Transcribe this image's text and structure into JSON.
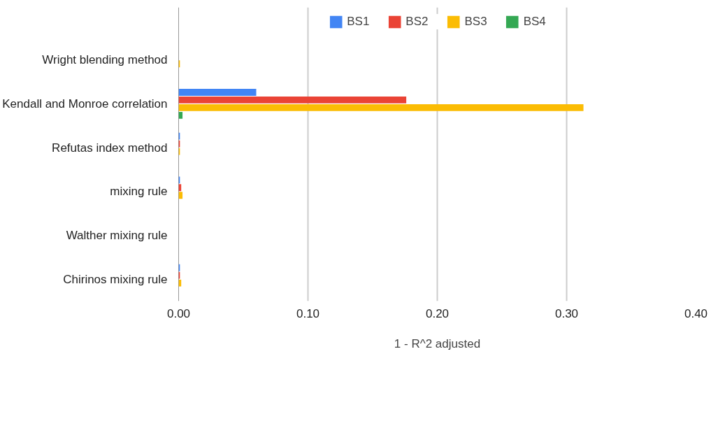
{
  "chart_data": {
    "type": "bar",
    "orientation": "horizontal",
    "xlabel": "1 - R^2 adjusted",
    "categories": [
      "Wright blending method",
      "Kendall and Monroe correlation",
      "Refutas index method",
      "mixing rule",
      "Walther mixing rule",
      "Chirinos mixing rule"
    ],
    "series": [
      {
        "name": "BS1",
        "color": "#4285f4",
        "values": [
          0,
          0.06,
          0.001,
          0.001,
          0,
          0.001
        ]
      },
      {
        "name": "BS2",
        "color": "#ea4335",
        "values": [
          0,
          0.176,
          0.001,
          0.002,
          0,
          0.001
        ]
      },
      {
        "name": "BS3",
        "color": "#fbbc04",
        "values": [
          0.001,
          0.313,
          0.001,
          0.003,
          0,
          0.002
        ]
      },
      {
        "name": "BS4",
        "color": "#34a853",
        "values": [
          0,
          0.003,
          0,
          0,
          0,
          0
        ]
      }
    ],
    "xlim": [
      0,
      0.4
    ],
    "xticks": [
      {
        "value": 0,
        "label": "0.00"
      },
      {
        "value": 0.1,
        "label": "0.10"
      },
      {
        "value": 0.2,
        "label": "0.20"
      },
      {
        "value": 0.3,
        "label": "0.30"
      },
      {
        "value": 0.4,
        "label": "0.40"
      }
    ],
    "grid": "x",
    "legend": "top"
  }
}
